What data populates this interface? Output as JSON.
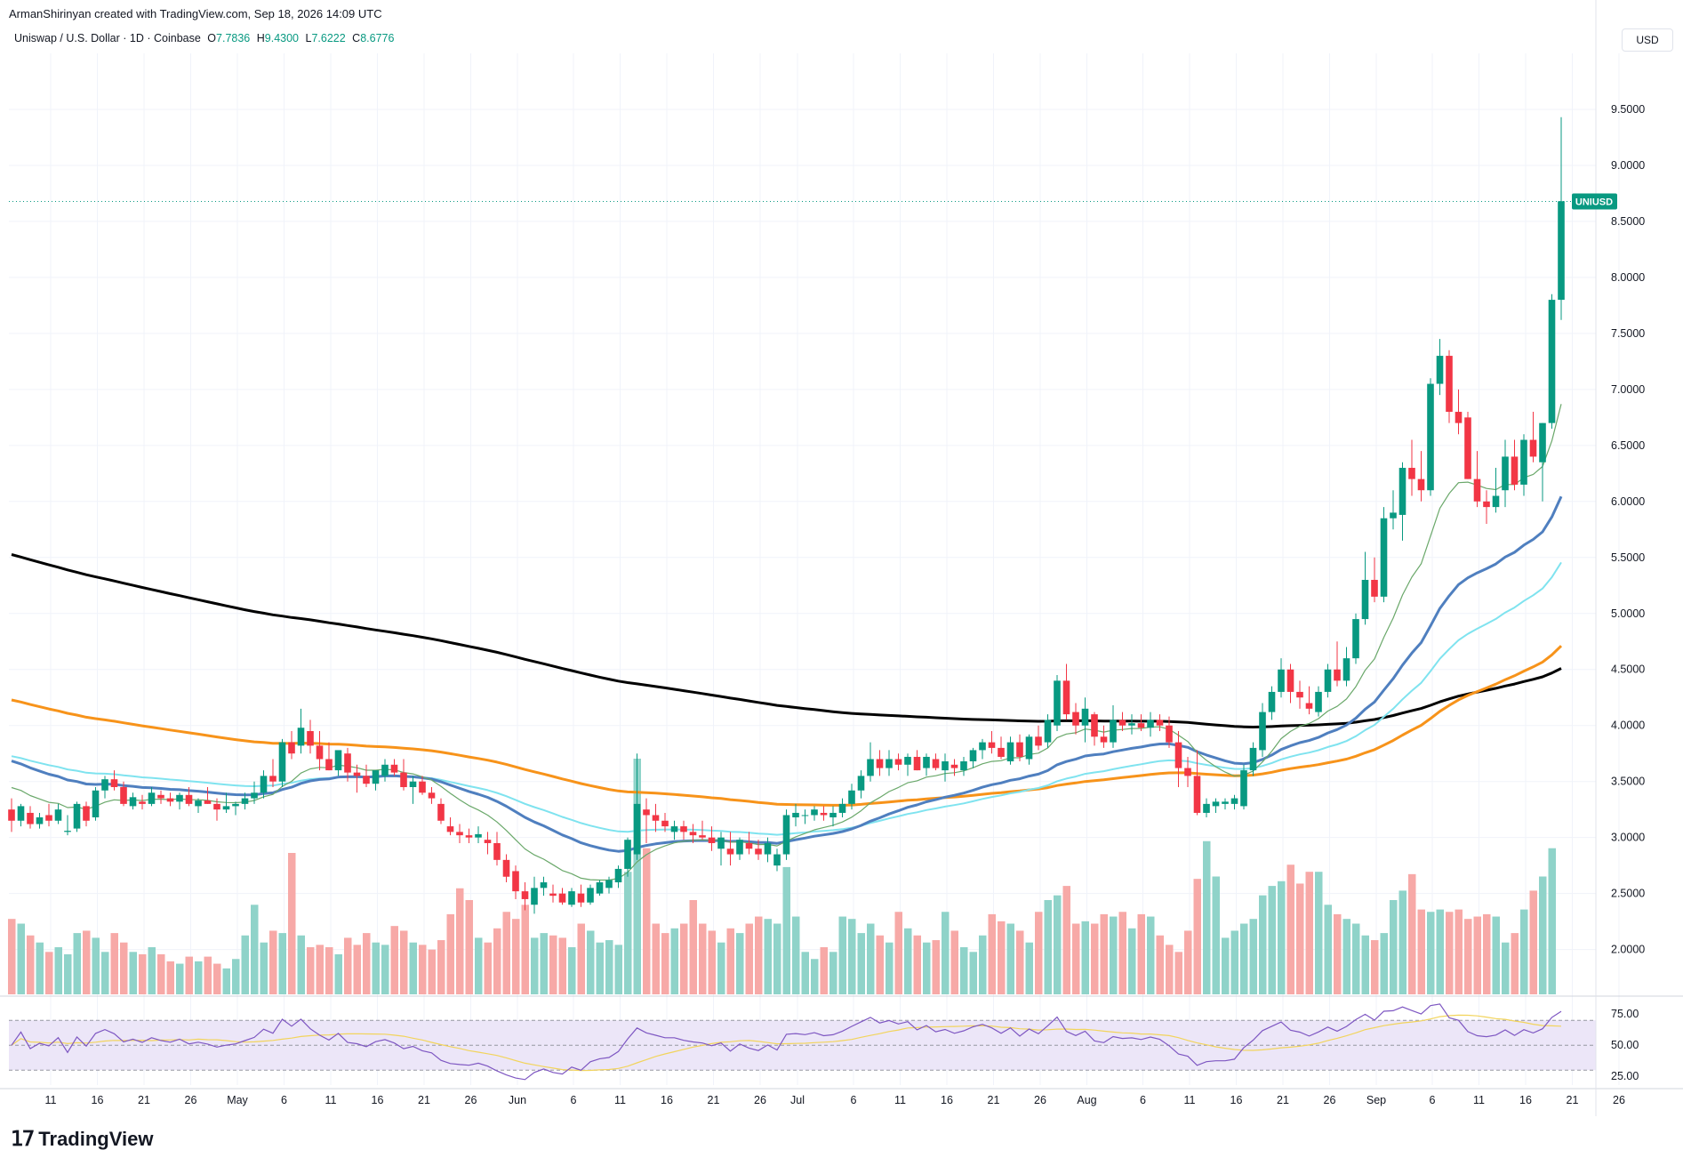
{
  "header": {
    "author_line": "ArmanShirinyan created with TradingView.com, Sep 18, 2026 14:09 UTC",
    "symbol": "Uniswap / U.S. Dollar · 1D · Coinbase",
    "ohlc": [
      {
        "key": "O",
        "value": "7.7836"
      },
      {
        "key": "H",
        "value": "9.4300"
      },
      {
        "key": "L",
        "value": "7.6222"
      },
      {
        "key": "C",
        "value": "8.6776"
      }
    ],
    "currency": "USD"
  },
  "footer": {
    "brand": "TradingView"
  },
  "colors": {
    "up": "#089981",
    "down": "#f23645",
    "vol_up": "#8fd3c9",
    "vol_down": "#f7a9a7",
    "ma_black": "#000000",
    "ma_orange": "#f7931a",
    "ma_blue": "#4f7fbf",
    "ma_cyan": "#7fe3ef",
    "ma_green": "#6aa86a",
    "rsi": "#7e57c2",
    "rsi_ma": "#f2d45c",
    "rsi_band": "#ece6f8",
    "price_tag": "#089981"
  },
  "chart_data": {
    "type": "candlestick",
    "price_label": "UNIUSD",
    "last_price": 8.6776,
    "y_ticks": [
      "2.0000",
      "2.5000",
      "3.0000",
      "3.5000",
      "4.0000",
      "4.5000",
      "5.0000",
      "5.5000",
      "6.0000",
      "6.5000",
      "7.0000",
      "7.5000",
      "8.0000",
      "8.5000",
      "9.0000",
      "9.5000"
    ],
    "ylim": [
      1.6,
      10.0
    ],
    "x_ticks": [
      "11",
      "16",
      "21",
      "26",
      "May",
      "6",
      "11",
      "16",
      "21",
      "26",
      "Jun",
      "6",
      "11",
      "16",
      "21",
      "26",
      "Jul",
      "6",
      "11",
      "16",
      "21",
      "26",
      "Aug",
      "6",
      "11",
      "16",
      "21",
      "26",
      "Sep",
      "6",
      "11",
      "16",
      "21",
      "26"
    ],
    "x_tick_day_index": [
      0,
      5,
      10,
      15,
      20,
      25,
      30,
      35,
      40,
      45,
      50,
      56,
      61,
      66,
      71,
      76,
      80,
      86,
      91,
      96,
      101,
      106,
      111,
      117,
      122,
      127,
      132,
      137,
      142,
      148,
      153,
      158,
      163,
      168
    ],
    "candles": [
      [
        3.25,
        3.35,
        3.05,
        3.15
      ],
      [
        3.15,
        3.3,
        3.1,
        3.28
      ],
      [
        3.22,
        3.28,
        3.08,
        3.12
      ],
      [
        3.12,
        3.22,
        3.08,
        3.18
      ],
      [
        3.2,
        3.3,
        3.1,
        3.15
      ],
      [
        3.15,
        3.3,
        3.12,
        3.25
      ],
      [
        3.05,
        3.2,
        3.02,
        3.06
      ],
      [
        3.08,
        3.32,
        3.05,
        3.3
      ],
      [
        3.28,
        3.32,
        3.1,
        3.15
      ],
      [
        3.18,
        3.45,
        3.15,
        3.42
      ],
      [
        3.42,
        3.55,
        3.35,
        3.52
      ],
      [
        3.52,
        3.6,
        3.42,
        3.45
      ],
      [
        3.45,
        3.5,
        3.28,
        3.3
      ],
      [
        3.28,
        3.4,
        3.25,
        3.36
      ],
      [
        3.32,
        3.38,
        3.25,
        3.3
      ],
      [
        3.3,
        3.45,
        3.28,
        3.4
      ],
      [
        3.38,
        3.42,
        3.3,
        3.35
      ],
      [
        3.35,
        3.4,
        3.28,
        3.32
      ],
      [
        3.32,
        3.4,
        3.25,
        3.38
      ],
      [
        3.38,
        3.45,
        3.28,
        3.3
      ],
      [
        3.28,
        3.35,
        3.22,
        3.33
      ],
      [
        3.33,
        3.45,
        3.3,
        3.3
      ],
      [
        3.3,
        3.35,
        3.15,
        3.25
      ],
      [
        3.25,
        3.4,
        3.22,
        3.28
      ],
      [
        3.28,
        3.32,
        3.2,
        3.3
      ],
      [
        3.3,
        3.4,
        3.25,
        3.35
      ],
      [
        3.35,
        3.5,
        3.3,
        3.4
      ],
      [
        3.4,
        3.6,
        3.35,
        3.55
      ],
      [
        3.55,
        3.7,
        3.45,
        3.5
      ],
      [
        3.5,
        3.88,
        3.45,
        3.85
      ],
      [
        3.85,
        3.95,
        3.7,
        3.75
      ],
      [
        3.82,
        4.15,
        3.75,
        3.98
      ],
      [
        3.95,
        4.05,
        3.75,
        3.82
      ],
      [
        3.82,
        3.95,
        3.6,
        3.7
      ],
      [
        3.7,
        3.85,
        3.6,
        3.6
      ],
      [
        3.6,
        3.75,
        3.55,
        3.78
      ],
      [
        3.75,
        3.8,
        3.5,
        3.58
      ],
      [
        3.58,
        3.65,
        3.4,
        3.55
      ],
      [
        3.55,
        3.65,
        3.45,
        3.48
      ],
      [
        3.48,
        3.6,
        3.42,
        3.6
      ],
      [
        3.55,
        3.7,
        3.5,
        3.65
      ],
      [
        3.65,
        3.7,
        3.55,
        3.58
      ],
      [
        3.58,
        3.7,
        3.42,
        3.45
      ],
      [
        3.45,
        3.55,
        3.3,
        3.5
      ],
      [
        3.5,
        3.55,
        3.38,
        3.4
      ],
      [
        3.4,
        3.45,
        3.3,
        3.35
      ],
      [
        3.3,
        3.35,
        3.12,
        3.15
      ],
      [
        3.1,
        3.18,
        3.02,
        3.05
      ],
      [
        3.05,
        3.12,
        2.95,
        3.02
      ],
      [
        3.02,
        3.08,
        2.95,
        3.0
      ],
      [
        3.0,
        3.1,
        2.95,
        3.03
      ],
      [
        2.98,
        3.05,
        2.85,
        2.95
      ],
      [
        2.95,
        3.05,
        2.75,
        2.8
      ],
      [
        2.8,
        2.85,
        2.6,
        2.65
      ],
      [
        2.7,
        2.75,
        2.45,
        2.52
      ],
      [
        2.52,
        2.6,
        2.35,
        2.45
      ],
      [
        2.4,
        2.65,
        2.32,
        2.55
      ],
      [
        2.55,
        2.65,
        2.48,
        2.6
      ],
      [
        2.5,
        2.58,
        2.42,
        2.48
      ],
      [
        2.5,
        2.55,
        2.4,
        2.42
      ],
      [
        2.4,
        2.55,
        2.38,
        2.52
      ],
      [
        2.5,
        2.58,
        2.38,
        2.42
      ],
      [
        2.42,
        2.58,
        2.4,
        2.55
      ],
      [
        2.5,
        2.62,
        2.48,
        2.6
      ],
      [
        2.55,
        2.65,
        2.5,
        2.62
      ],
      [
        2.6,
        2.75,
        2.55,
        2.72
      ],
      [
        2.72,
        3.0,
        2.65,
        2.98
      ],
      [
        2.85,
        3.75,
        2.8,
        3.3
      ],
      [
        3.25,
        3.35,
        2.95,
        3.2
      ],
      [
        3.2,
        3.3,
        3.05,
        3.15
      ],
      [
        3.15,
        3.22,
        3.05,
        3.1
      ],
      [
        3.05,
        3.15,
        2.98,
        3.1
      ],
      [
        3.1,
        3.15,
        2.98,
        3.05
      ],
      [
        3.05,
        3.12,
        2.95,
        3.02
      ],
      [
        3.02,
        3.15,
        2.98,
        3.0
      ],
      [
        3.0,
        3.1,
        2.88,
        2.95
      ],
      [
        2.9,
        3.05,
        2.75,
        3.0
      ],
      [
        2.9,
        3.05,
        2.75,
        2.85
      ],
      [
        2.85,
        3.0,
        2.8,
        2.98
      ],
      [
        2.95,
        3.05,
        2.85,
        2.9
      ],
      [
        2.9,
        2.98,
        2.8,
        2.85
      ],
      [
        2.85,
        3.0,
        2.78,
        2.95
      ],
      [
        2.75,
        2.9,
        2.7,
        2.85
      ],
      [
        2.85,
        3.25,
        2.8,
        3.2
      ],
      [
        3.18,
        3.3,
        3.1,
        3.22
      ],
      [
        3.2,
        3.25,
        3.12,
        3.2
      ],
      [
        3.2,
        3.28,
        3.15,
        3.25
      ],
      [
        3.22,
        3.28,
        3.15,
        3.2
      ],
      [
        3.18,
        3.28,
        3.1,
        3.22
      ],
      [
        3.22,
        3.35,
        3.18,
        3.3
      ],
      [
        3.3,
        3.48,
        3.25,
        3.42
      ],
      [
        3.42,
        3.6,
        3.35,
        3.55
      ],
      [
        3.55,
        3.85,
        3.5,
        3.7
      ],
      [
        3.7,
        3.78,
        3.55,
        3.62
      ],
      [
        3.62,
        3.78,
        3.55,
        3.7
      ],
      [
        3.7,
        3.75,
        3.6,
        3.65
      ],
      [
        3.65,
        3.75,
        3.55,
        3.72
      ],
      [
        3.72,
        3.78,
        3.6,
        3.6
      ],
      [
        3.62,
        3.75,
        3.55,
        3.72
      ],
      [
        3.7,
        3.75,
        3.6,
        3.62
      ],
      [
        3.6,
        3.75,
        3.5,
        3.68
      ],
      [
        3.65,
        3.7,
        3.55,
        3.62
      ],
      [
        3.6,
        3.72,
        3.55,
        3.68
      ],
      [
        3.68,
        3.8,
        3.62,
        3.78
      ],
      [
        3.78,
        3.88,
        3.7,
        3.85
      ],
      [
        3.85,
        3.95,
        3.75,
        3.8
      ],
      [
        3.8,
        3.9,
        3.7,
        3.72
      ],
      [
        3.68,
        3.9,
        3.65,
        3.85
      ],
      [
        3.85,
        3.92,
        3.68,
        3.72
      ],
      [
        3.7,
        3.92,
        3.65,
        3.9
      ],
      [
        3.9,
        4.0,
        3.78,
        3.82
      ],
      [
        3.85,
        4.1,
        3.8,
        4.05
      ],
      [
        4.0,
        4.45,
        3.95,
        4.4
      ],
      [
        4.4,
        4.55,
        4.05,
        4.1
      ],
      [
        4.12,
        4.2,
        3.92,
        4.0
      ],
      [
        4.0,
        4.25,
        3.85,
        4.15
      ],
      [
        4.1,
        4.12,
        3.82,
        3.9
      ],
      [
        3.9,
        4.0,
        3.8,
        3.85
      ],
      [
        3.85,
        4.18,
        3.8,
        4.05
      ],
      [
        4.05,
        4.12,
        3.95,
        4.0
      ],
      [
        4.0,
        4.1,
        3.92,
        4.02
      ],
      [
        4.02,
        4.1,
        3.95,
        3.98
      ],
      [
        3.98,
        4.12,
        3.9,
        4.05
      ],
      [
        4.05,
        4.1,
        3.95,
        4.0
      ],
      [
        4.0,
        4.08,
        3.8,
        3.85
      ],
      [
        3.85,
        3.95,
        3.45,
        3.62
      ],
      [
        3.62,
        3.72,
        3.45,
        3.55
      ],
      [
        3.55,
        3.78,
        3.2,
        3.22
      ],
      [
        3.22,
        3.35,
        3.18,
        3.3
      ],
      [
        3.28,
        3.35,
        3.22,
        3.32
      ],
      [
        3.3,
        3.35,
        3.25,
        3.32
      ],
      [
        3.3,
        3.38,
        3.25,
        3.35
      ],
      [
        3.28,
        3.65,
        3.25,
        3.6
      ],
      [
        3.6,
        3.85,
        3.55,
        3.8
      ],
      [
        3.78,
        4.2,
        3.72,
        4.12
      ],
      [
        4.12,
        4.35,
        4.05,
        4.3
      ],
      [
        4.3,
        4.6,
        4.25,
        4.5
      ],
      [
        4.5,
        4.55,
        4.2,
        4.3
      ],
      [
        4.3,
        4.4,
        4.15,
        4.25
      ],
      [
        4.2,
        4.35,
        4.1,
        4.15
      ],
      [
        4.12,
        4.35,
        4.08,
        4.3
      ],
      [
        4.3,
        4.55,
        4.25,
        4.5
      ],
      [
        4.5,
        4.75,
        4.35,
        4.4
      ],
      [
        4.4,
        4.7,
        4.35,
        4.6
      ],
      [
        4.6,
        5.0,
        4.55,
        4.95
      ],
      [
        4.95,
        5.55,
        4.9,
        5.3
      ],
      [
        5.3,
        5.5,
        5.1,
        5.15
      ],
      [
        5.15,
        5.95,
        5.1,
        5.85
      ],
      [
        5.85,
        6.1,
        5.75,
        5.9
      ],
      [
        5.88,
        6.35,
        5.65,
        6.3
      ],
      [
        6.3,
        6.55,
        6.05,
        6.2
      ],
      [
        6.2,
        6.45,
        6.0,
        6.1
      ],
      [
        6.1,
        7.1,
        6.05,
        7.05
      ],
      [
        7.05,
        7.45,
        6.95,
        7.3
      ],
      [
        7.3,
        7.35,
        6.7,
        6.8
      ],
      [
        6.8,
        7.0,
        6.6,
        6.7
      ],
      [
        6.75,
        6.8,
        6.2,
        6.2
      ],
      [
        6.2,
        6.45,
        5.95,
        6.0
      ],
      [
        6.0,
        6.1,
        5.8,
        5.95
      ],
      [
        5.95,
        6.3,
        5.9,
        6.05
      ],
      [
        6.1,
        6.55,
        5.95,
        6.4
      ],
      [
        6.4,
        6.55,
        6.1,
        6.15
      ],
      [
        6.15,
        6.6,
        6.05,
        6.55
      ],
      [
        6.55,
        6.8,
        6.35,
        6.4
      ],
      [
        6.35,
        6.7,
        6.0,
        6.7
      ],
      [
        6.7,
        7.85,
        6.65,
        7.8
      ],
      [
        7.8,
        9.43,
        7.62,
        8.68
      ]
    ],
    "volume_relative": [
      0.32,
      0.3,
      0.25,
      0.22,
      0.18,
      0.2,
      0.17,
      0.26,
      0.27,
      0.24,
      0.18,
      0.26,
      0.22,
      0.18,
      0.17,
      0.2,
      0.17,
      0.14,
      0.13,
      0.16,
      0.14,
      0.16,
      0.13,
      0.11,
      0.15,
      0.25,
      0.38,
      0.22,
      0.27,
      0.26,
      0.6,
      0.25,
      0.2,
      0.21,
      0.2,
      0.17,
      0.24,
      0.21,
      0.26,
      0.22,
      0.21,
      0.29,
      0.27,
      0.22,
      0.21,
      0.19,
      0.23,
      0.34,
      0.45,
      0.4,
      0.24,
      0.22,
      0.28,
      0.35,
      0.32,
      0.38,
      0.24,
      0.26,
      0.25,
      0.24,
      0.2,
      0.3,
      0.27,
      0.22,
      0.23,
      0.21,
      0.52,
      1.0,
      0.62,
      0.3,
      0.26,
      0.28,
      0.3,
      0.4,
      0.3,
      0.27,
      0.22,
      0.28,
      0.26,
      0.3,
      0.33,
      0.32,
      0.3,
      0.54,
      0.33,
      0.18,
      0.15,
      0.2,
      0.18,
      0.33,
      0.32,
      0.26,
      0.3,
      0.25,
      0.22,
      0.35,
      0.28,
      0.25,
      0.22,
      0.23,
      0.35,
      0.27,
      0.2,
      0.18,
      0.25,
      0.34,
      0.31,
      0.3,
      0.27,
      0.22,
      0.35,
      0.4,
      0.42,
      0.46,
      0.3,
      0.31,
      0.3,
      0.34,
      0.33,
      0.35,
      0.28,
      0.34,
      0.33,
      0.25,
      0.21,
      0.18,
      0.27,
      0.49,
      0.65,
      0.5,
      0.24,
      0.27,
      0.3,
      0.32,
      0.42,
      0.46,
      0.48,
      0.55,
      0.47,
      0.52,
      0.52,
      0.38,
      0.34,
      0.32,
      0.3,
      0.25,
      0.23,
      0.26,
      0.4,
      0.44,
      0.51,
      0.36,
      0.35,
      0.36,
      0.35,
      0.36,
      0.32,
      0.33,
      0.34,
      0.33,
      0.22,
      0.26,
      0.36,
      0.44,
      0.5,
      0.62
    ],
    "rsi_ticks": [
      "25.00",
      "50.00",
      "75.00"
    ],
    "rsi_bands": [
      30,
      70
    ],
    "rsi_ylim": [
      18,
      88
    ]
  }
}
